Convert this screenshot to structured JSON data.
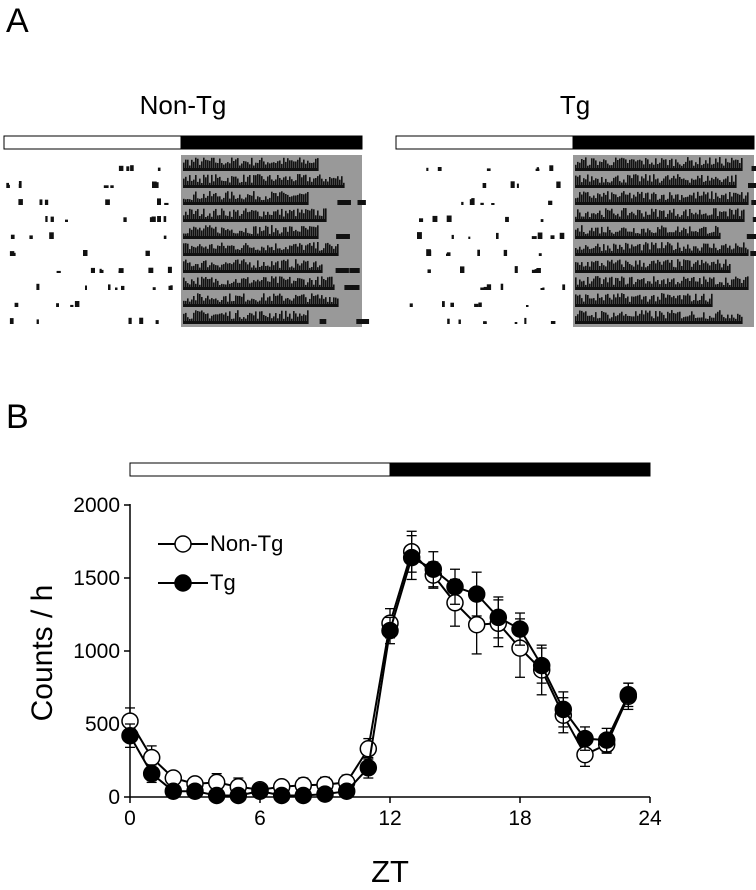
{
  "panelA": {
    "letter": "A",
    "groups": [
      {
        "name": "Non-Tg"
      },
      {
        "name": "Tg"
      }
    ],
    "colors": {
      "dark_phase": "#999999",
      "activity": "#111111",
      "light_bar": "#ffffff",
      "dark_bar": "#000000"
    }
  },
  "panelB": {
    "letter": "B"
  },
  "chart_data": {
    "type": "line",
    "xlabel": "ZT",
    "ylabel": "Counts / h",
    "xlim": [
      0,
      24
    ],
    "ylim": [
      0,
      2000
    ],
    "xticks": [
      0,
      6,
      12,
      18,
      24
    ],
    "yticks": [
      0,
      500,
      1000,
      1500,
      2000
    ],
    "light_dark_bar": {
      "light": [
        0,
        12
      ],
      "dark": [
        12,
        24
      ]
    },
    "legend_position": "top-left",
    "x": [
      0,
      1,
      2,
      3,
      4,
      5,
      6,
      7,
      8,
      9,
      10,
      11,
      12,
      13,
      14,
      15,
      16,
      17,
      18,
      19,
      20,
      21,
      22,
      23
    ],
    "series": [
      {
        "name": "Non-Tg",
        "marker": "open-circle",
        "values": [
          520,
          270,
          130,
          90,
          100,
          70,
          50,
          70,
          80,
          85,
          100,
          330,
          1190,
          1680,
          1520,
          1330,
          1180,
          1190,
          1020,
          870,
          560,
          290,
          360,
          690
        ],
        "errors": [
          90,
          80,
          40,
          40,
          60,
          60,
          40,
          40,
          50,
          50,
          50,
          70,
          100,
          140,
          90,
          160,
          200,
          160,
          200,
          170,
          120,
          80,
          60,
          90
        ]
      },
      {
        "name": "Tg",
        "marker": "filled-circle",
        "values": [
          420,
          160,
          40,
          40,
          10,
          10,
          40,
          10,
          10,
          20,
          40,
          200,
          1140,
          1640,
          1560,
          1440,
          1390,
          1230,
          1150,
          900,
          600,
          400,
          390,
          700
        ],
        "errors": [
          80,
          60,
          40,
          40,
          40,
          40,
          40,
          40,
          40,
          40,
          40,
          70,
          90,
          150,
          120,
          120,
          150,
          140,
          110,
          120,
          120,
          80,
          80,
          80
        ]
      }
    ]
  }
}
